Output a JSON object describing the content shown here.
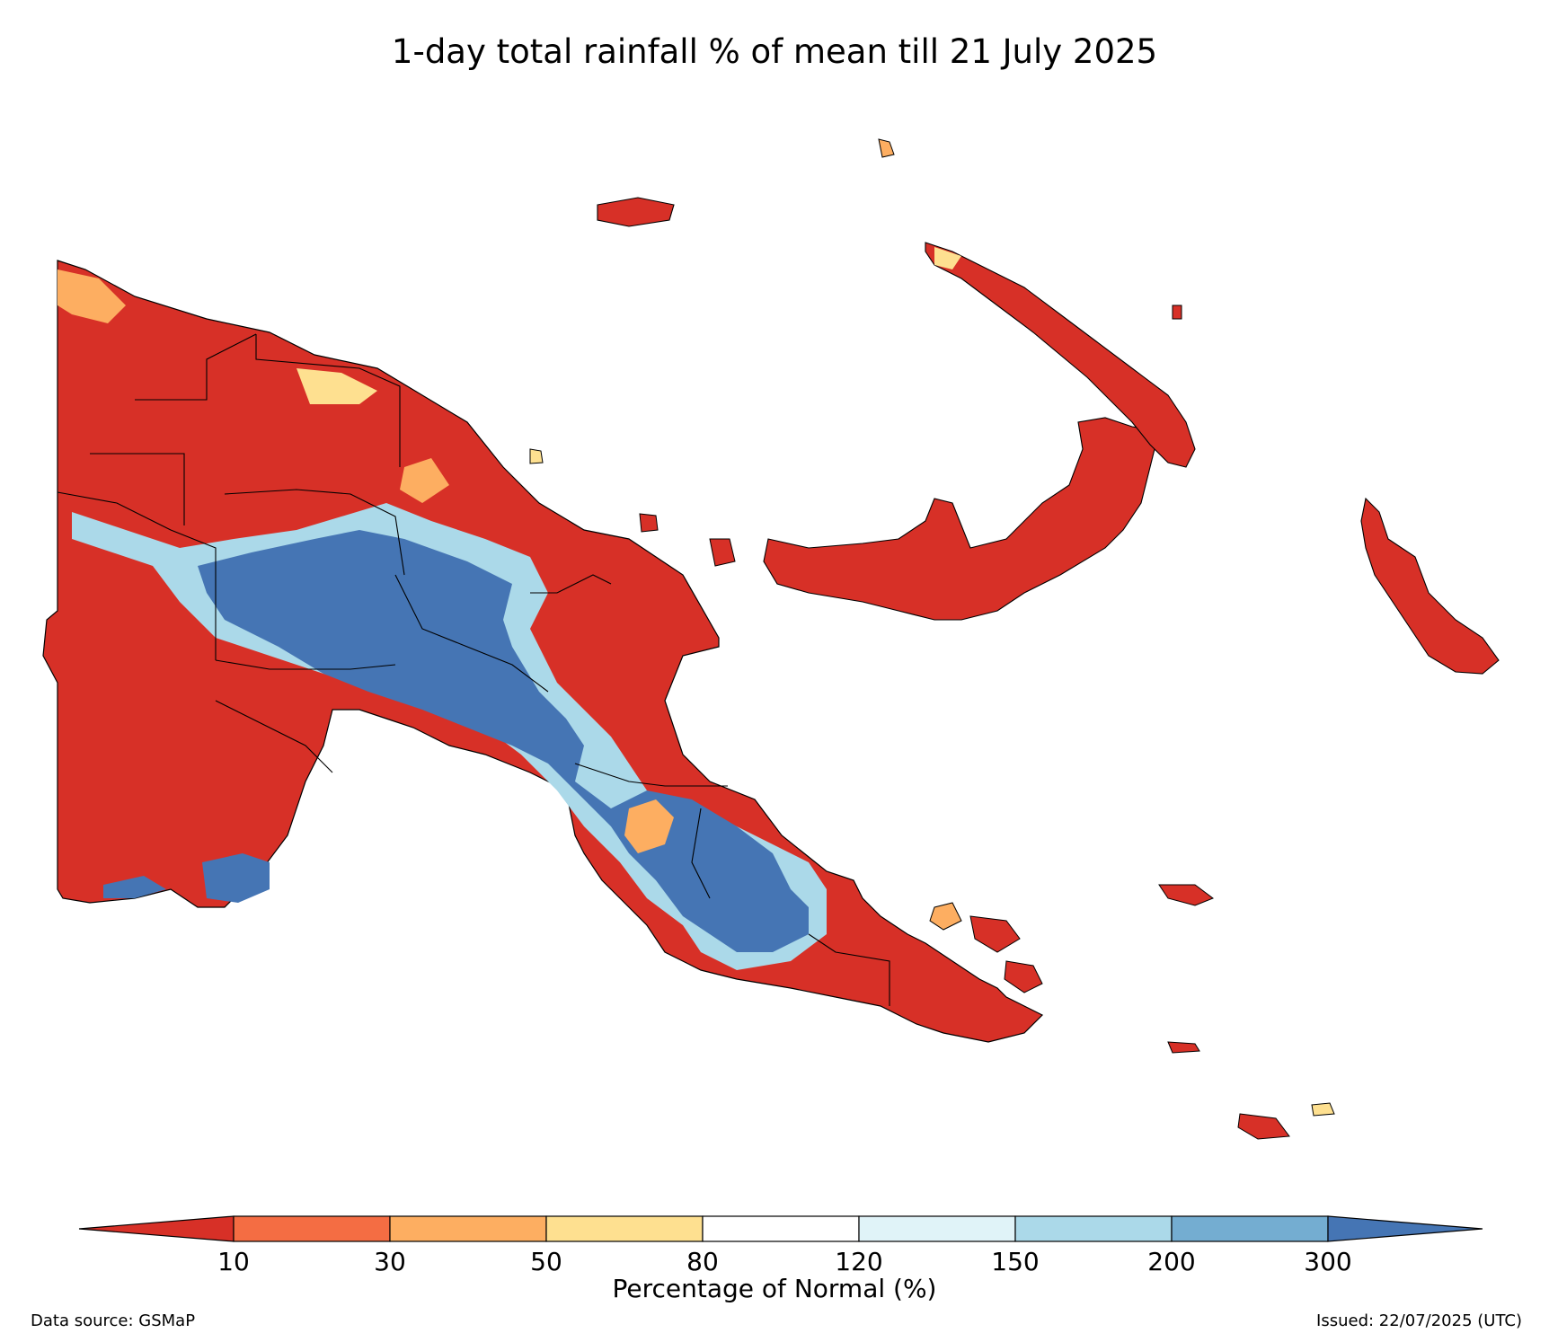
{
  "title": "1-day total rainfall % of mean till 21 July 2025",
  "legend": {
    "label": "Percentage of Normal (%)",
    "ticks": [
      "10",
      "30",
      "50",
      "80",
      "120",
      "150",
      "200",
      "300"
    ],
    "classes": [
      {
        "range": "<10",
        "color": "#d73027"
      },
      {
        "range": "10-30",
        "color": "#f46d43"
      },
      {
        "range": "30-50",
        "color": "#fdae61"
      },
      {
        "range": "50-80",
        "color": "#fee090"
      },
      {
        "range": "80-120",
        "color": "#ffffff"
      },
      {
        "range": "120-150",
        "color": "#e0f3f8"
      },
      {
        "range": "150-200",
        "color": "#abd9e9"
      },
      {
        "range": "200-300",
        "color": "#74add1"
      },
      {
        "range": ">300",
        "color": "#4575b4"
      }
    ]
  },
  "footer": {
    "source": "Data source: GSMaP",
    "issued": "Issued: 22/07/2025 (UTC)"
  }
}
